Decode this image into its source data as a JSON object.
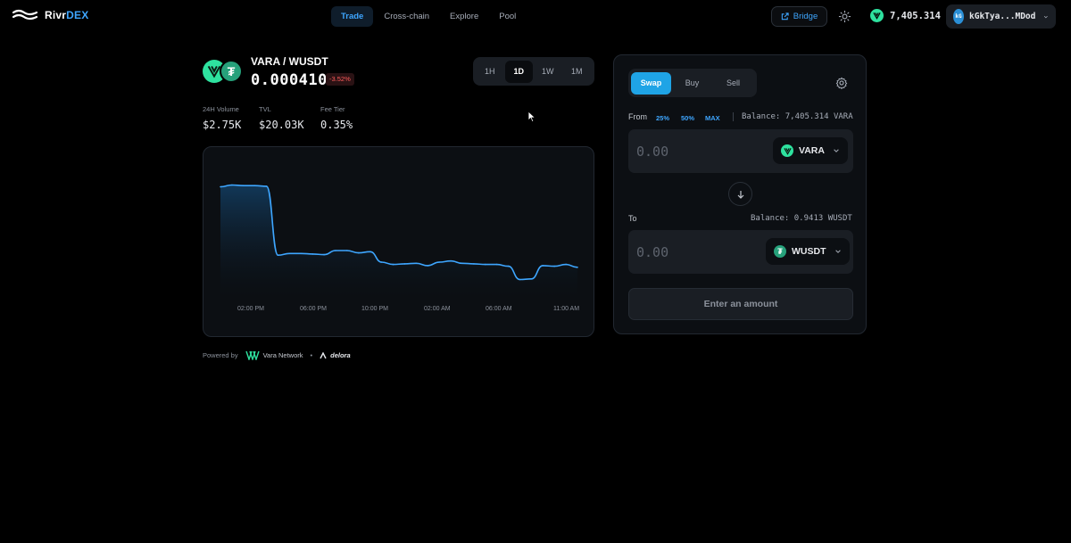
{
  "app": {
    "logo_text_main": "Rivr",
    "logo_text_accent": "DEX"
  },
  "nav": {
    "items": [
      "Trade",
      "Cross-chain",
      "Explore",
      "Pool"
    ],
    "active": "Trade"
  },
  "header": {
    "bridge_label": "Bridge",
    "wallet_balance": "7,405.314",
    "account_initials": "kG",
    "account_label": "kGkTya...MDod"
  },
  "pair": {
    "name": "VARA / WUSDT",
    "price": "0.000410",
    "change": "-3.52%",
    "base_icon": "vara-icon",
    "quote_icon": "tether-icon"
  },
  "timeframes": {
    "items": [
      "1H",
      "1D",
      "1W",
      "1M"
    ],
    "active": "1D"
  },
  "stats": [
    {
      "label": "24H Volume",
      "value": "$2.75K"
    },
    {
      "label": "TVL",
      "value": "$20.03K"
    },
    {
      "label": "Fee Tier",
      "value": "0.35%"
    }
  ],
  "chart_data": {
    "type": "area",
    "title": "",
    "xlabel": "",
    "ylabel": "",
    "grid": false,
    "x_tick_labels": [
      "02:00 PM",
      "06:00 PM",
      "10:00 PM",
      "02:00 AM",
      "06:00 AM",
      "11:00 AM"
    ],
    "series": [
      {
        "values": [
          0.95,
          0.965,
          0.96,
          0.96,
          0.955,
          0.36,
          0.375,
          0.375,
          0.37,
          0.365,
          0.4,
          0.4,
          0.38,
          0.39,
          0.3,
          0.28,
          0.285,
          0.29,
          0.27,
          0.3,
          0.31,
          0.29,
          0.285,
          0.28,
          0.28,
          0.265,
          0.15,
          0.155,
          0.27,
          0.265,
          0.28,
          0.255
        ]
      }
    ],
    "colors": {
      "line": "#3ea6ff",
      "fill": "#123a5c"
    }
  },
  "footer": {
    "powered_by": "Powered by",
    "network": "Vara Network",
    "separator": "•",
    "partner": "delora"
  },
  "swap": {
    "tabs": [
      "Swap",
      "Buy",
      "Sell"
    ],
    "active_tab": "Swap",
    "from_label": "From",
    "pct_buttons": [
      "25%",
      "50%",
      "MAX"
    ],
    "from_balance": "Balance: 7,405.314 VARA",
    "from_placeholder": "0.00",
    "from_token": "VARA",
    "to_label": "To",
    "to_balance": "Balance: 0.9413 WUSDT",
    "to_placeholder": "0.00",
    "to_token": "WUSDT",
    "submit_label": "Enter an amount"
  },
  "colors": {
    "accent": "#3ea6ff",
    "negative": "#ff5b5b",
    "vara": "#2ee29f",
    "tether": "#26a17b"
  }
}
